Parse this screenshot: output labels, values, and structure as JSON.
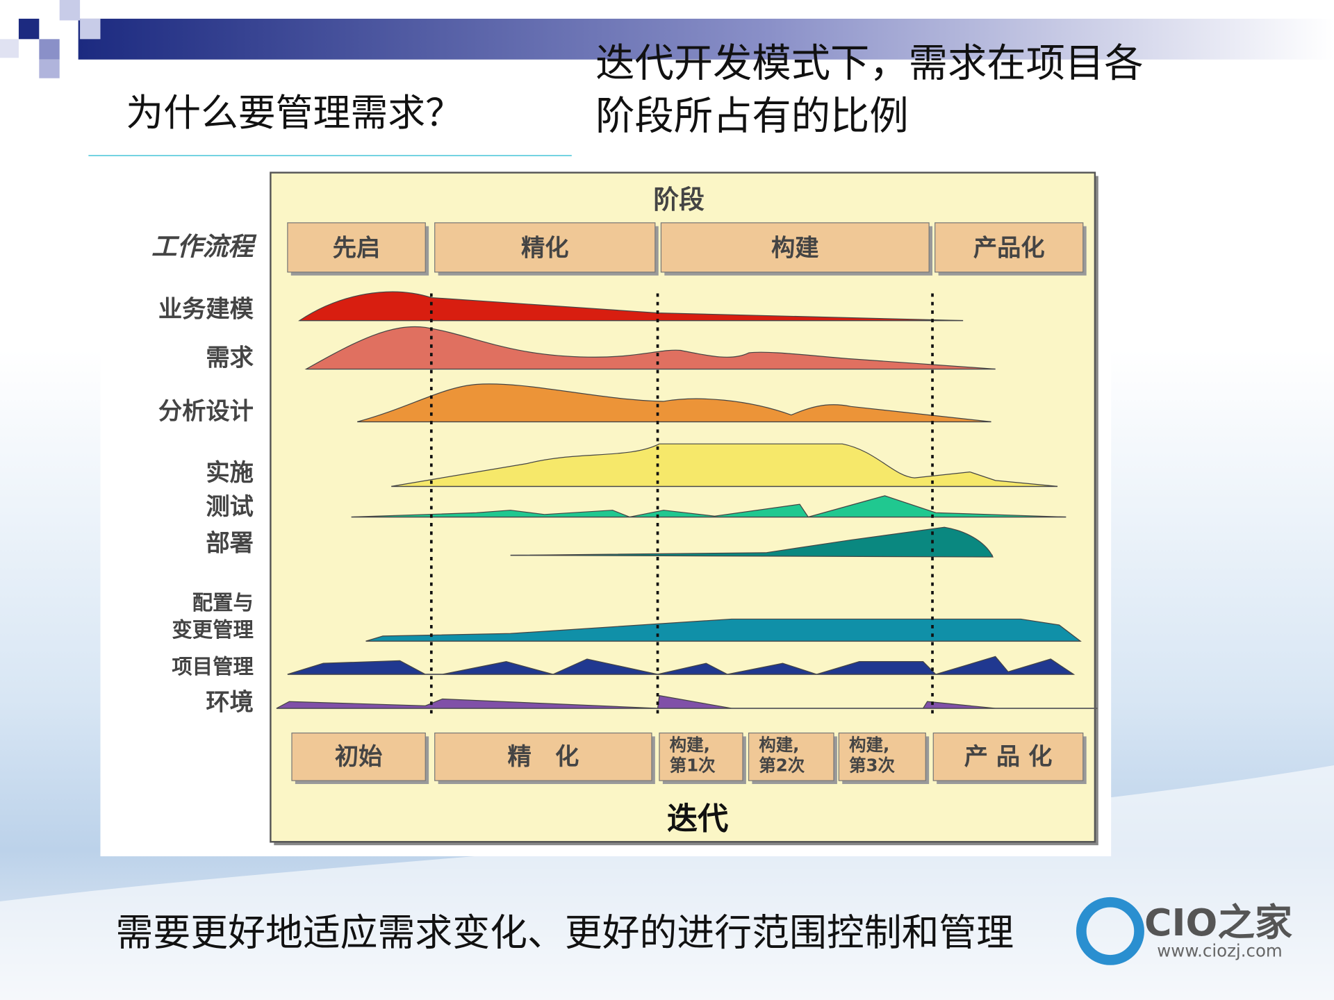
{
  "header": {
    "title": "为什么要管理需求？",
    "subtitle_lines": [
      "迭代开发模式下，需求在项目各",
      "阶段所占有的比例"
    ]
  },
  "diagram": {
    "phase_header": "阶段",
    "workflow_header": "工作流程",
    "phases": [
      "先启",
      "精化",
      "构建",
      "产品化"
    ],
    "workflows": [
      [
        "业务建模"
      ],
      [
        "需求"
      ],
      [
        "分析设计"
      ],
      [
        "实施"
      ],
      [
        "测试"
      ],
      [
        "部署"
      ],
      [
        "配置与",
        "变更管理"
      ],
      [
        "项目管理"
      ],
      [
        "环境"
      ]
    ],
    "iterations": [
      [
        "初始"
      ],
      [
        "精　化"
      ],
      [
        "构建,",
        "第1次"
      ],
      [
        "构建,",
        "第2次"
      ],
      [
        "构建,",
        "第3次"
      ],
      [
        "产 品 化"
      ]
    ],
    "iteration_footer": "迭代"
  },
  "footer": {
    "text": "需要更好地适应需求变化、更好的进行范围控制和管理"
  },
  "logo": {
    "name": "CIO之家",
    "url": "www.ciozj.com"
  }
}
